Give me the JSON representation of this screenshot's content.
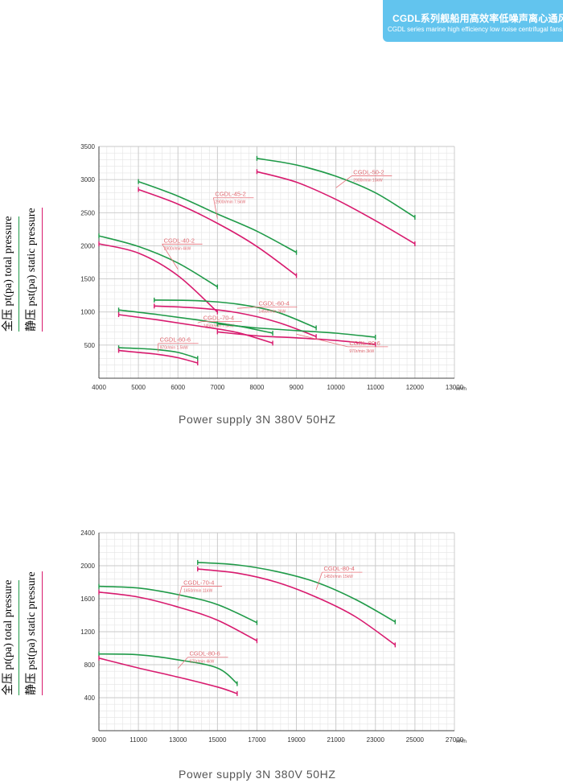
{
  "header": {
    "title_cn": "CGDL系列舰船用高效率低噪声离心通风机",
    "title_en": "CGDL series marine high efficiency low noise centrifugal fans",
    "bg_color": "#62c4ee"
  },
  "labels": {
    "total_pressure": "全压 pt(pa)  total pressure",
    "static_pressure": "静压 pst(pa)  static pressure",
    "power_supply_1": "Power supply   3N 380V  50HZ",
    "power_supply_2": "Power supply   3N 380V  50HZ"
  },
  "colors": {
    "total": "#1f9a48",
    "static": "#d81a6e",
    "label_line": "#e8707a",
    "label_text": "#e06a72",
    "grid": "#c8c8c8"
  },
  "chart_data": [
    {
      "type": "line",
      "title": "",
      "xlabel": "",
      "ylabel": "",
      "x_unit": "m³/h",
      "xlim": [
        4000,
        13000
      ],
      "ylim": [
        0,
        3500
      ],
      "xticks": [
        4000,
        5000,
        6000,
        7000,
        8000,
        9000,
        10000,
        11000,
        12000,
        13000
      ],
      "xtick_labels": [
        "4000",
        "5000",
        "6000",
        "7000",
        "8000",
        "9000",
        "10000",
        "11000",
        "12000",
        "13000"
      ],
      "yticks": [
        500,
        1000,
        1500,
        2000,
        2500,
        3000,
        3500
      ],
      "ytick_labels": [
        "500",
        "1000",
        "1500",
        "2000",
        "2500",
        "3000",
        "3500"
      ],
      "grid": true,
      "models": [
        {
          "name": "CGDL-40-2",
          "spec": "2900r/min 4kW",
          "total": [
            [
              4000,
              2150
            ],
            [
              5000,
              1990
            ],
            [
              6000,
              1740
            ],
            [
              7000,
              1380
            ]
          ],
          "static": [
            [
              4000,
              2030
            ],
            [
              5000,
              1890
            ],
            [
              6000,
              1550
            ],
            [
              7000,
              1000
            ]
          ],
          "label_at": [
            5600,
            2050
          ]
        },
        {
          "name": "CGDL-45-2",
          "spec": "2900r/min 7.5kW",
          "total": [
            [
              5000,
              2970
            ],
            [
              6000,
              2750
            ],
            [
              7000,
              2480
            ],
            [
              8000,
              2220
            ],
            [
              9000,
              1900
            ]
          ],
          "static": [
            [
              5000,
              2850
            ],
            [
              6000,
              2630
            ],
            [
              7000,
              2340
            ],
            [
              8000,
              1990
            ],
            [
              9000,
              1550
            ]
          ],
          "label_at": [
            6900,
            2750
          ]
        },
        {
          "name": "CGDL-50-2",
          "spec": "2900r/min 15kW",
          "total": [
            [
              8000,
              3320
            ],
            [
              9000,
              3220
            ],
            [
              10000,
              3050
            ],
            [
              11000,
              2800
            ],
            [
              12000,
              2430
            ]
          ],
          "static": [
            [
              8000,
              3120
            ],
            [
              9000,
              2960
            ],
            [
              10000,
              2700
            ],
            [
              11000,
              2380
            ],
            [
              12000,
              2030
            ]
          ],
          "label_at": [
            10400,
            3080
          ]
        },
        {
          "name": "CGDL-60-4",
          "spec": "1450r/min 3kW",
          "total": [
            [
              5400,
              1180
            ],
            [
              6500,
              1170
            ],
            [
              7500,
              1120
            ],
            [
              8500,
              1000
            ],
            [
              9500,
              760
            ]
          ],
          "static": [
            [
              5400,
              1090
            ],
            [
              6500,
              1060
            ],
            [
              7500,
              990
            ],
            [
              8500,
              850
            ],
            [
              9500,
              630
            ]
          ],
          "label_at": [
            8000,
            1100
          ]
        },
        {
          "name": "CGDL-60-6",
          "spec": "970r/min 1.5kW",
          "total": [
            [
              4500,
              460
            ],
            [
              5000,
              450
            ],
            [
              5500,
              430
            ],
            [
              6000,
              390
            ],
            [
              6500,
              300
            ]
          ],
          "static": [
            [
              4500,
              420
            ],
            [
              5000,
              390
            ],
            [
              5500,
              360
            ],
            [
              6000,
              310
            ],
            [
              6500,
              230
            ]
          ],
          "label_at": [
            5500,
            550
          ]
        },
        {
          "name": "CGDL-70-4",
          "spec": "1450r/min 7.5kW",
          "total": [
            [
              4500,
              1030
            ],
            [
              5500,
              960
            ],
            [
              6500,
              880
            ],
            [
              7500,
              790
            ],
            [
              8400,
              680
            ]
          ],
          "static": [
            [
              4500,
              960
            ],
            [
              5500,
              880
            ],
            [
              6500,
              790
            ],
            [
              7500,
              690
            ],
            [
              8400,
              530
            ]
          ],
          "label_at": [
            6600,
            880
          ]
        },
        {
          "name": "CGDL-80-6",
          "spec": "970r/min 3kW",
          "total": [
            [
              7000,
              820
            ],
            [
              8000,
              760
            ],
            [
              9000,
              720
            ],
            [
              10000,
              680
            ],
            [
              11000,
              620
            ]
          ],
          "static": [
            [
              7000,
              700
            ],
            [
              8000,
              640
            ],
            [
              9000,
              610
            ],
            [
              10000,
              570
            ],
            [
              11000,
              510
            ]
          ],
          "label_at": [
            10300,
            500
          ]
        }
      ]
    },
    {
      "type": "line",
      "title": "",
      "xlabel": "",
      "ylabel": "",
      "x_unit": "m³/h",
      "xlim": [
        9000,
        27000
      ],
      "ylim": [
        0,
        2400
      ],
      "xticks": [
        9000,
        11000,
        13000,
        15000,
        17000,
        19000,
        21000,
        23000,
        25000,
        27000
      ],
      "xtick_labels": [
        "9000",
        "11000",
        "13000",
        "15000",
        "17000",
        "19000",
        "21000",
        "23000",
        "25000",
        "27000"
      ],
      "yticks": [
        400,
        800,
        1200,
        1600,
        2000,
        2400
      ],
      "ytick_labels": [
        "400",
        "800",
        "1200",
        "1600",
        "2000",
        "2400"
      ],
      "grid": true,
      "models": [
        {
          "name": "CGDL-70-4",
          "spec": "1450r/min 11kW",
          "total": [
            [
              9000,
              1750
            ],
            [
              11000,
              1730
            ],
            [
              13000,
              1650
            ],
            [
              15000,
              1530
            ],
            [
              17000,
              1310
            ]
          ],
          "static": [
            [
              9000,
              1680
            ],
            [
              11000,
              1620
            ],
            [
              13000,
              1500
            ],
            [
              15000,
              1340
            ],
            [
              17000,
              1090
            ]
          ],
          "label_at": [
            13200,
            1770
          ]
        },
        {
          "name": "CGDL-80-4",
          "spec": "1450r/min 15kW",
          "total": [
            [
              14000,
              2040
            ],
            [
              16000,
              2010
            ],
            [
              18000,
              1930
            ],
            [
              20000,
              1800
            ],
            [
              22000,
              1590
            ],
            [
              24000,
              1320
            ]
          ],
          "static": [
            [
              14000,
              1960
            ],
            [
              16000,
              1910
            ],
            [
              18000,
              1800
            ],
            [
              20000,
              1620
            ],
            [
              22000,
              1380
            ],
            [
              24000,
              1040
            ]
          ],
          "label_at": [
            20300,
            1940
          ]
        },
        {
          "name": "CGDL-80-6",
          "spec": "970r/min 4kW",
          "total": [
            [
              9000,
              930
            ],
            [
              11000,
              920
            ],
            [
              13000,
              860
            ],
            [
              15000,
              760
            ],
            [
              16000,
              570
            ]
          ],
          "static": [
            [
              9000,
              880
            ],
            [
              11000,
              760
            ],
            [
              13000,
              650
            ],
            [
              15000,
              530
            ],
            [
              16000,
              450
            ]
          ],
          "label_at": [
            13500,
            910
          ]
        }
      ]
    }
  ]
}
